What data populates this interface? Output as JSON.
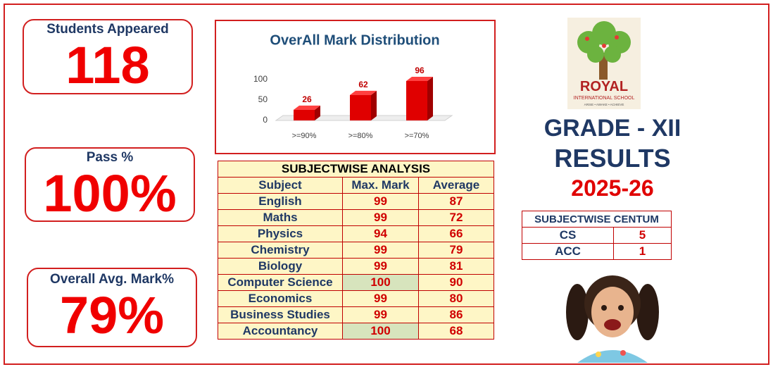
{
  "cards": [
    {
      "label": "Students Appeared",
      "value": "118"
    },
    {
      "label": "Pass %",
      "value": "100%"
    },
    {
      "label": "Overall Avg. Mark%",
      "value": "79%"
    }
  ],
  "chart_data": {
    "type": "bar",
    "title": "OverAll Mark Distribution",
    "categories": [
      ">=90%",
      ">=80%",
      ">=70%"
    ],
    "values": [
      26,
      62,
      96
    ],
    "color": "#e00000",
    "ylim": [
      0,
      120
    ],
    "yticks": [
      0,
      50,
      100
    ],
    "grid": false
  },
  "subject_table": {
    "title": "SUBJECTWISE ANALYSIS",
    "header": [
      "Subject",
      "Max. Mark",
      "Average"
    ],
    "rows": [
      [
        "English",
        99,
        87
      ],
      [
        "Maths",
        99,
        72
      ],
      [
        "Physics",
        94,
        66
      ],
      [
        "Chemistry",
        99,
        79
      ],
      [
        "Biology",
        99,
        81
      ],
      [
        "Computer Science",
        100,
        90
      ],
      [
        "Economics",
        99,
        80
      ],
      [
        "Business Studies",
        99,
        86
      ],
      [
        "Accountancy",
        100,
        68
      ]
    ]
  },
  "logo": {
    "name": "ROYAL",
    "subtitle": "INTERNATIONAL SCHOOL",
    "motto": "ARISE • AWAKE • ACHIEVE"
  },
  "heading": {
    "grade": "GRADE - XII",
    "results": "RESULTS",
    "year": "2025-26"
  },
  "centum_table": {
    "title": "SUBJECTWISE CENTUM",
    "rows": [
      [
        "CS",
        5
      ],
      [
        "ACC",
        1
      ]
    ]
  }
}
